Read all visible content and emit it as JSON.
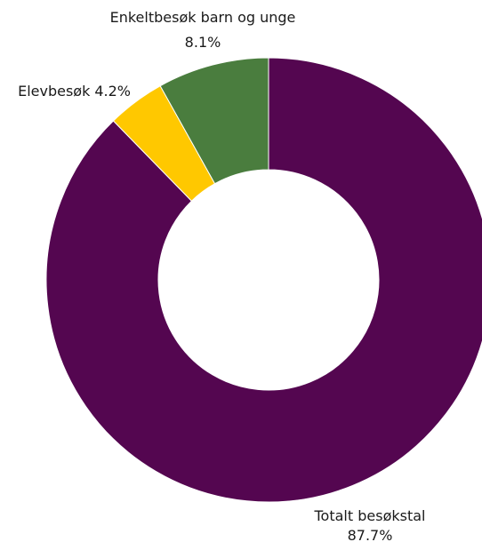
{
  "chart_data": {
    "type": "pie",
    "variant": "donut",
    "title": "",
    "legend": "none",
    "slices": [
      {
        "label": "Totalt besøkstal",
        "value": 87.7,
        "value_label": "87.7%",
        "color": "#540650"
      },
      {
        "label": "Elevbesøk",
        "value": 4.2,
        "value_label": "4.2%",
        "color": "#FFC800"
      },
      {
        "label": "Enkeltbesøk barn og unge",
        "value": 8.1,
        "value_label": "8.1%",
        "color": "#4A7D3E"
      }
    ]
  }
}
